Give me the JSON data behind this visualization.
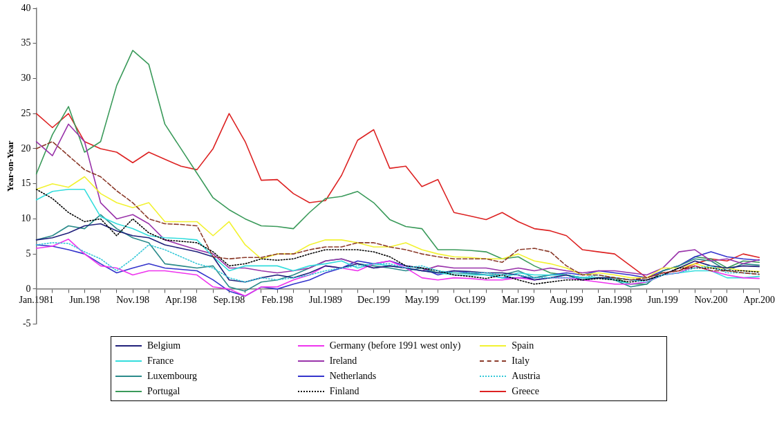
{
  "chart_data": {
    "type": "line",
    "ylabel": "Year-on-Year",
    "categories": [
      "Jan.1981",
      null,
      null,
      "Jun.198",
      null,
      null,
      "Nov.198",
      null,
      null,
      "Apr.198",
      null,
      null,
      "Sep.198",
      null,
      null,
      "Feb.198",
      null,
      null,
      "Jul.1989",
      null,
      null,
      "Dec.199",
      null,
      null,
      "May.199",
      null,
      null,
      "Oct.199",
      null,
      null,
      "Mar.199",
      null,
      null,
      "Aug.199",
      null,
      null,
      "Jan.1998",
      null,
      null,
      "Jun.199",
      null,
      null,
      "Nov.200",
      null,
      null,
      "Apr.200"
    ],
    "ylim": [
      -5,
      40
    ],
    "yticks": [
      -5,
      0,
      5,
      10,
      15,
      20,
      25,
      30,
      35,
      40
    ],
    "grid": false,
    "legend": "bottom",
    "marker": "none",
    "line_style": "solid",
    "series": [
      {
        "name": "Belgium",
        "color": "#1f1f7a",
        "values": [
          7,
          7.3,
          8,
          9,
          9.3,
          8.3,
          7.6,
          7.3,
          6.3,
          5.8,
          5.3,
          4.6,
          1.3,
          1,
          1.6,
          2,
          1.6,
          2.3,
          3.3,
          3,
          3.6,
          3,
          3.3,
          3,
          2.6,
          2.3,
          2.6,
          2.5,
          2.3,
          2.3,
          2,
          1.3,
          1.6,
          2,
          1.3,
          1.6,
          1.6,
          1.3,
          1.3,
          2,
          3,
          4,
          3.3,
          3,
          3.3,
          3.2
        ]
      },
      {
        "name": "Germany (before 1991 west only)",
        "color": "#ee33ee",
        "values": [
          5.8,
          6.1,
          7.1,
          5,
          3.3,
          3,
          2,
          2.6,
          2.6,
          2.3,
          2,
          0.3,
          0,
          -1,
          0.3,
          0.3,
          1.3,
          2,
          3.3,
          3,
          2.6,
          3.6,
          4,
          3,
          1.6,
          1.3,
          1.6,
          1.5,
          1.3,
          1.3,
          1.6,
          1.3,
          1.6,
          1.6,
          1.3,
          1,
          0.7,
          0.7,
          1,
          2,
          2.3,
          3.3,
          2.6,
          2,
          1.6,
          1.5
        ]
      },
      {
        "name": "Spain",
        "color": "#f2f230",
        "values": [
          14.2,
          15,
          14.5,
          16,
          13.6,
          12.3,
          11.6,
          12.3,
          9.6,
          9.6,
          9.6,
          7.6,
          9.6,
          6.3,
          4.3,
          5,
          5,
          6.3,
          7,
          7,
          6.6,
          6,
          6,
          6.6,
          5.6,
          5,
          4.6,
          4.5,
          4.3,
          4.3,
          5,
          4,
          3.6,
          3,
          2,
          2.3,
          2,
          1.6,
          1.6,
          3,
          3,
          3.6,
          3,
          3,
          2.6,
          2.5
        ]
      },
      {
        "name": "France",
        "color": "#33dddd",
        "values": [
          12.7,
          13.9,
          14.2,
          14.2,
          10.3,
          9.3,
          8.6,
          7.6,
          7.3,
          7.2,
          7,
          4.6,
          2.6,
          3.3,
          3.3,
          3.3,
          2.6,
          3.3,
          3.6,
          4,
          3,
          3.6,
          3.3,
          3,
          2.6,
          2.3,
          2,
          2,
          2,
          1.6,
          2.3,
          2,
          2,
          2,
          1.6,
          1.6,
          1.3,
          0.7,
          1,
          2,
          2.3,
          2.6,
          2.6,
          1.6,
          1.6,
          1.8
        ]
      },
      {
        "name": "Ireland",
        "color": "#9933aa",
        "values": [
          21,
          19,
          23.5,
          21,
          12.3,
          10,
          10.6,
          9.3,
          7,
          6.3,
          5.6,
          5,
          3,
          3,
          2.6,
          2.3,
          2.6,
          3,
          4,
          4.3,
          3.6,
          3,
          3.3,
          3,
          2.6,
          3.3,
          3,
          3,
          3,
          2.6,
          3,
          2.6,
          3,
          2.6,
          2.3,
          2.6,
          2.6,
          2.3,
          2,
          3,
          5.3,
          5.6,
          4,
          4.3,
          3.6,
          4.2
        ]
      },
      {
        "name": "Italy",
        "color": "#8b3a2a",
        "line_style": "dashed",
        "values": [
          20,
          21,
          19,
          17,
          16,
          14,
          12.3,
          10,
          9.3,
          9.2,
          9,
          4.6,
          4.3,
          4.5,
          4.5,
          5,
          5,
          5.6,
          6,
          6,
          6.6,
          6.6,
          6,
          5.6,
          5,
          4.6,
          4.3,
          4.3,
          4.3,
          3.8,
          5.6,
          5.8,
          5.3,
          3.3,
          2,
          2,
          1.6,
          1.3,
          1.6,
          2.3,
          2.6,
          3.3,
          2.6,
          2.6,
          2.3,
          2.1
        ]
      },
      {
        "name": "Luxembourg",
        "color": "#2a8a8a",
        "values": [
          7,
          7.6,
          9,
          8.6,
          10.6,
          8.6,
          7.3,
          6.6,
          3.6,
          3.3,
          3,
          3.3,
          0.3,
          -0.3,
          1,
          1.3,
          2,
          3,
          4,
          4.3,
          3.6,
          3.3,
          3,
          2.6,
          3,
          2.3,
          2.3,
          2.2,
          2,
          2,
          2.6,
          1.6,
          2,
          2,
          1.6,
          1.6,
          1.3,
          0.3,
          0.7,
          2.6,
          3.3,
          4.3,
          4,
          2.6,
          3.6,
          3.4
        ]
      },
      {
        "name": "Netherlands",
        "color": "#3333cc",
        "values": [
          6.3,
          6.1,
          5.6,
          5,
          3.6,
          2.3,
          3,
          3.6,
          3,
          2.8,
          2.6,
          1.3,
          -0.3,
          -1,
          0.3,
          0,
          0.7,
          1.3,
          2.3,
          3,
          4,
          3.6,
          4,
          3.3,
          3,
          2,
          2.6,
          2.3,
          2,
          1.6,
          1.6,
          1.6,
          2,
          2.3,
          2,
          2.6,
          2.3,
          2,
          1.6,
          2.6,
          3.3,
          4.6,
          5.3,
          4.6,
          4.3,
          4.1
        ]
      },
      {
        "name": "Austria",
        "color": "#33c8d8",
        "line_style": "dotted",
        "values": [
          6.3,
          6.6,
          6.5,
          5.3,
          4.3,
          2.6,
          4.3,
          6.3,
          5.6,
          4.6,
          3.6,
          3,
          1.6,
          1,
          1.6,
          1.3,
          1.6,
          2,
          2.6,
          3,
          3.3,
          3.6,
          3.6,
          3,
          3.3,
          2.6,
          2.3,
          2.3,
          2.3,
          2,
          2,
          1.6,
          1.6,
          1.6,
          1.6,
          2,
          1.6,
          1.3,
          1,
          2,
          2.3,
          3,
          3.3,
          2.3,
          2.3,
          2.1
        ]
      },
      {
        "name": "Portugal",
        "color": "#3a9a5a",
        "values": [
          16.4,
          22,
          26,
          19.5,
          21,
          29,
          34,
          32,
          23.5,
          20,
          16.5,
          13,
          11.3,
          10,
          9,
          8.9,
          8.6,
          10.9,
          12.9,
          13.2,
          13.9,
          12.3,
          9.9,
          8.9,
          8.6,
          5.6,
          5.6,
          5.5,
          5.3,
          4.3,
          4.6,
          3.3,
          2.3,
          2,
          1.6,
          1.6,
          1.6,
          0.7,
          0.7,
          2.6,
          3.3,
          4.6,
          4.3,
          3,
          4,
          3.8
        ]
      },
      {
        "name": "Finland",
        "color": "#000000",
        "line_style": "dotted",
        "values": [
          14.2,
          12.9,
          10.9,
          9.6,
          10,
          7.6,
          10,
          8,
          7,
          6.8,
          6.6,
          5.3,
          3.3,
          3.6,
          4.3,
          4.1,
          4.3,
          5,
          5.6,
          5.6,
          5.6,
          5.3,
          4.6,
          3.3,
          3,
          2.6,
          2,
          1.8,
          1.5,
          2,
          1.3,
          0.7,
          1,
          1.3,
          1.3,
          1.5,
          1.3,
          1,
          1.3,
          2,
          3,
          3,
          3,
          2.6,
          2.6,
          2.4
        ]
      },
      {
        "name": "Greece",
        "color": "#dd2222",
        "values": [
          25,
          23,
          25,
          21,
          20,
          19.5,
          18,
          19.5,
          18.5,
          17.5,
          17,
          20,
          25,
          21,
          15.5,
          15.6,
          13.6,
          12.3,
          12.6,
          16.2,
          21.2,
          22.7,
          17.2,
          17.5,
          14.6,
          15.6,
          10.9,
          10.4,
          9.9,
          10.9,
          9.6,
          8.6,
          8.3,
          7.6,
          5.6,
          5.3,
          5,
          3.3,
          1.6,
          2.3,
          2.6,
          3.6,
          4.3,
          4,
          5,
          4.5
        ]
      }
    ]
  }
}
